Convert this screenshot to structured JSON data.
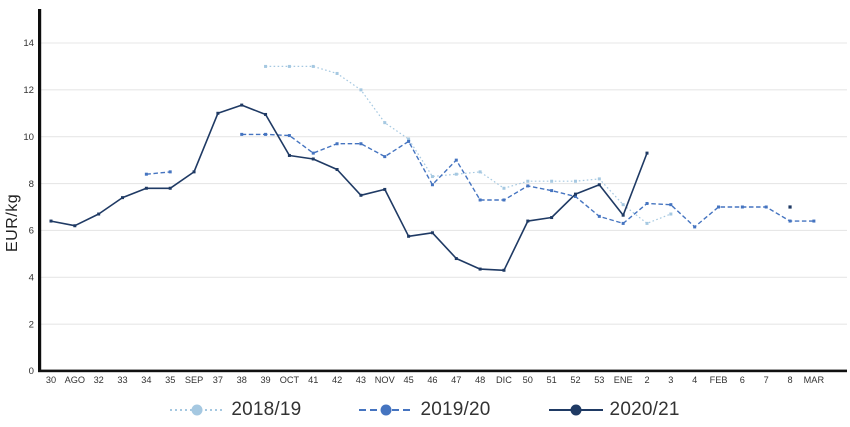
{
  "chart_data": {
    "type": "line",
    "title": "",
    "xlabel": "",
    "ylabel": "EUR/kg",
    "ylim": [
      0,
      15.3
    ],
    "yticks": [
      0,
      2,
      4,
      6,
      8,
      10,
      12,
      14
    ],
    "grid": "horizontal",
    "legend_position": "bottom",
    "categories": [
      "30",
      "AGO",
      "32",
      "33",
      "34",
      "35",
      "SEP",
      "37",
      "38",
      "39",
      "OCT",
      "41",
      "42",
      "43",
      "NOV",
      "45",
      "46",
      "47",
      "48",
      "DIC",
      "50",
      "51",
      "52",
      "53",
      "ENE",
      "2",
      "3",
      "4",
      "FEB",
      "6",
      "7",
      "8",
      "MAR"
    ],
    "series": [
      {
        "name": "2018/19",
        "color": "#a5c8e1",
        "style": "dotted",
        "values": [
          null,
          null,
          null,
          null,
          null,
          null,
          null,
          null,
          null,
          13.0,
          13.0,
          13.0,
          12.7,
          12.0,
          10.6,
          9.9,
          8.3,
          8.4,
          8.5,
          7.8,
          8.1,
          8.1,
          8.1,
          8.2,
          7.1,
          6.3,
          6.7,
          null,
          null,
          null,
          null,
          null,
          null
        ]
      },
      {
        "name": "2019/20",
        "color": "#4574c0",
        "style": "dashed",
        "values": [
          null,
          null,
          null,
          null,
          8.4,
          8.5,
          null,
          null,
          10.1,
          10.1,
          10.05,
          9.3,
          9.7,
          9.7,
          9.15,
          9.8,
          7.95,
          9.0,
          7.3,
          7.3,
          7.9,
          7.7,
          7.45,
          6.6,
          6.3,
          7.15,
          7.1,
          6.15,
          7.0,
          7.0,
          7.0,
          6.4,
          6.4
        ]
      },
      {
        "name": "2020/21",
        "color": "#1f3a64",
        "style": "solid",
        "values": [
          6.4,
          6.2,
          6.7,
          7.4,
          7.8,
          7.8,
          8.5,
          11.0,
          11.35,
          10.95,
          9.2,
          9.05,
          8.6,
          7.5,
          7.75,
          5.75,
          5.9,
          4.8,
          4.35,
          4.3,
          6.4,
          6.55,
          7.55,
          7.95,
          6.65,
          9.3,
          null,
          null,
          null,
          null,
          null,
          null,
          null
        ],
        "isolated_points": [
          {
            "category": "8",
            "value": 7.0
          }
        ]
      }
    ]
  }
}
